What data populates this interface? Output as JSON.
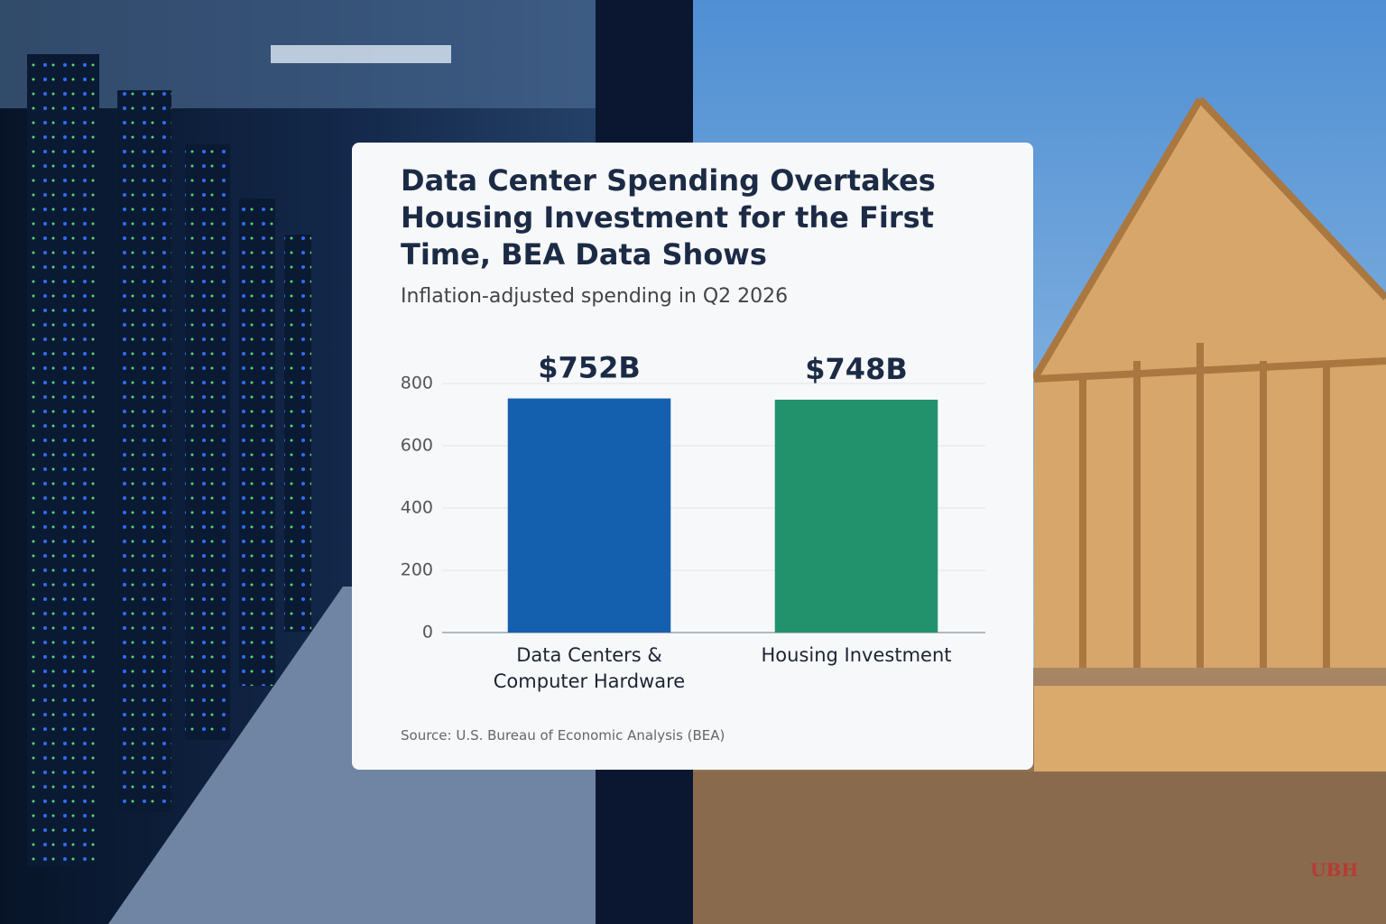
{
  "chart_data": {
    "type": "bar",
    "title": "Data Center Spending Overtakes Housing Investment for the First Time, BEA Data Shows",
    "subtitle": "Inflation-adjusted spending in Q2 2026",
    "categories": [
      "Data Centers & Computer Hardware",
      "Housing Investment"
    ],
    "series": [
      {
        "values": [
          752,
          748
        ],
        "value_labels": [
          "$752B",
          "$748B"
        ],
        "colors": [
          "#1560ae",
          "#22926d"
        ]
      }
    ],
    "ylim": [
      0,
      800
    ],
    "yticks": [
      0,
      200,
      400,
      600,
      800
    ],
    "grid": true,
    "source": "Source: U.S. Bureau of Economic Analysis (BEA)"
  },
  "watermark": "UBH"
}
